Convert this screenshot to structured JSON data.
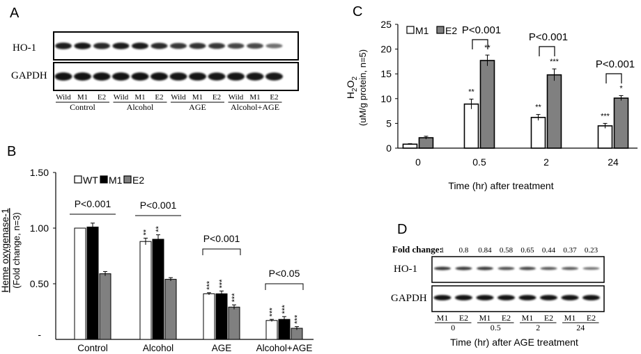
{
  "panel_labels": {
    "a": "A",
    "b": "B",
    "c": "C",
    "d": "D"
  },
  "panel_a": {
    "rows": [
      "HO-1",
      "GAPDH"
    ],
    "lanes": [
      "Wild",
      "M1",
      "E2",
      "Wild",
      "M1",
      "E2",
      "Wild",
      "M1",
      "E2",
      "Wild",
      "M1",
      "E2"
    ],
    "groups": [
      "Control",
      "Alcohol",
      "AGE",
      "Alcohol+AGE"
    ],
    "ho1_intensity": [
      0.88,
      0.92,
      0.82,
      0.9,
      0.9,
      0.8,
      0.72,
      0.75,
      0.72,
      0.62,
      0.6,
      0.35
    ],
    "gapdh_intensity": [
      0.95,
      0.95,
      0.95,
      0.95,
      0.95,
      0.95,
      0.92,
      0.92,
      0.9,
      0.92,
      0.9,
      0.9
    ]
  },
  "chart_data": [
    {
      "panel": "B",
      "type": "bar",
      "categories": [
        "Control",
        "Alcohol",
        "AGE",
        "Alcohol+AGE"
      ],
      "series": [
        {
          "name": "WT",
          "color": "#ffffff",
          "values": [
            1.0,
            0.88,
            0.41,
            0.17
          ],
          "errors": [
            0.0,
            0.03,
            0.01,
            0.01
          ],
          "marks": [
            "",
            "**",
            "***",
            "***"
          ]
        },
        {
          "name": "M1",
          "color": "#000000",
          "values": [
            1.01,
            0.9,
            0.41,
            0.18
          ],
          "errors": [
            0.035,
            0.04,
            0.025,
            0.025
          ],
          "marks": [
            "",
            "**",
            "***",
            "***"
          ]
        },
        {
          "name": "E2",
          "color": "#808080",
          "values": [
            0.59,
            0.54,
            0.29,
            0.1
          ],
          "errors": [
            0.02,
            0.015,
            0.02,
            0.015
          ],
          "marks": [
            "",
            "",
            "***",
            "***"
          ]
        }
      ],
      "ylim": [
        0,
        1.5
      ],
      "yticks": [
        0.5,
        1.0,
        1.5
      ],
      "ytick_labels": [
        "0.50",
        "1.00",
        "1.50"
      ],
      "zero_label": "-",
      "ylabel_line1": "Heme oxygenase-1",
      "ylabel_line2": "(Fold change, n=3)",
      "xlabel": "",
      "annotations": [
        {
          "text": "P<0.001",
          "group": 0,
          "bracket": false
        },
        {
          "text": "P<0.001",
          "group": 1,
          "bracket": false
        },
        {
          "text": "P<0.001",
          "group": 2,
          "bracket": true
        },
        {
          "text": "P<0.05",
          "group": 3,
          "bracket": true
        }
      ]
    },
    {
      "panel": "C",
      "type": "bar",
      "categories": [
        "0",
        "0.5",
        "2",
        "24"
      ],
      "series": [
        {
          "name": "M1",
          "color": "#ffffff",
          "values": [
            0.8,
            8.9,
            6.2,
            4.5
          ],
          "errors": [
            0.1,
            1.0,
            0.6,
            0.5
          ],
          "marks": [
            "",
            "**",
            "**",
            "***"
          ]
        },
        {
          "name": "E2",
          "color": "#808080",
          "values": [
            2.1,
            17.7,
            14.8,
            10.1
          ],
          "errors": [
            0.3,
            1.1,
            1.2,
            0.5
          ],
          "marks": [
            "",
            "**",
            "***",
            "*"
          ]
        }
      ],
      "ylim": [
        0,
        25
      ],
      "yticks": [
        0,
        5,
        10,
        15,
        20,
        25
      ],
      "ylabel_main": "H",
      "ylabel_sub": "2",
      "ylabel_main2": "O",
      "ylabel_sub2": "2",
      "ylabel_line2": "(uM/g protein, n=5)",
      "xlabel": "Time (hr) after treatment",
      "annotations": [
        {
          "text": "P<0.001",
          "group": 1
        },
        {
          "text": "P<0.001",
          "group": 2
        },
        {
          "text": "P<0.001",
          "group": 3
        }
      ]
    }
  ],
  "panel_d": {
    "fold_label": "Fold change:",
    "fold_values": [
      "1",
      "0.8",
      "0.84",
      "0.58",
      "0.65",
      "0.44",
      "0.37",
      "0.23"
    ],
    "rows": [
      "HO-1",
      "GAPDH"
    ],
    "lanes": [
      "M1",
      "E2",
      "M1",
      "E2",
      "M1",
      "E2",
      "M1",
      "E2"
    ],
    "times": [
      "0",
      "0.5",
      "2",
      "24"
    ],
    "xlabel": "Time (hr) after AGE treatment",
    "ho1_intensity": [
      0.8,
      0.78,
      0.78,
      0.65,
      0.72,
      0.6,
      0.58,
      0.45
    ],
    "gapdh_intensity": [
      0.95,
      0.95,
      0.95,
      0.95,
      0.95,
      0.95,
      0.95,
      0.95
    ]
  }
}
